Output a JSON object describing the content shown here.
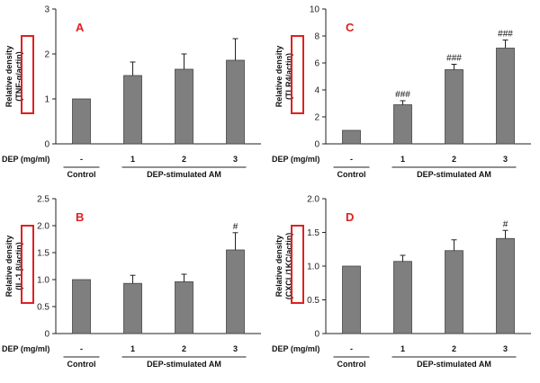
{
  "chart_data": [
    {
      "type": "bar",
      "panel_label": "A",
      "ylabel_line1": "Relative density",
      "ylabel_line2": "(TNF-α/actin)",
      "ylim": [
        0,
        3
      ],
      "yticks": [
        "0",
        "1",
        "2",
        "3"
      ],
      "yticks_values": [
        0,
        1,
        2,
        3
      ],
      "xlabel": "DEP (mg/ml)",
      "categories": [
        "-",
        "1",
        "2",
        "3"
      ],
      "values": [
        1.0,
        1.52,
        1.66,
        1.86
      ],
      "errors": [
        0.0,
        0.3,
        0.34,
        0.48
      ],
      "significance": [
        "",
        "",
        "",
        ""
      ],
      "group_labels": [
        "Control",
        "DEP-stimulated AM"
      ]
    },
    {
      "type": "bar",
      "panel_label": "C",
      "ylabel_line1": "Relative density",
      "ylabel_line2": "(TLR4/actin)",
      "ylim": [
        0,
        10
      ],
      "yticks": [
        "0",
        "2",
        "4",
        "6",
        "8",
        "10"
      ],
      "yticks_values": [
        0,
        2,
        4,
        6,
        8,
        10
      ],
      "xlabel": "DEP (mg/ml)",
      "categories": [
        "-",
        "1",
        "2",
        "3"
      ],
      "values": [
        1.0,
        2.9,
        5.5,
        7.1
      ],
      "errors": [
        0.0,
        0.3,
        0.4,
        0.6
      ],
      "significance": [
        "",
        "###",
        "###",
        "###"
      ],
      "group_labels": [
        "Control",
        "DEP-stimulated AM"
      ]
    },
    {
      "type": "bar",
      "panel_label": "B",
      "ylabel_line1": "Relative density",
      "ylabel_line2": "(IL-1 β/actin)",
      "ylim": [
        0,
        2.5
      ],
      "yticks": [
        "0",
        "0.5",
        "1.0",
        "1.5",
        "2.0",
        "2.5"
      ],
      "yticks_values": [
        0,
        0.5,
        1.0,
        1.5,
        2.0,
        2.5
      ],
      "xlabel": "DEP (mg/ml)",
      "categories": [
        "-",
        "1",
        "2",
        "3"
      ],
      "values": [
        1.0,
        0.93,
        0.96,
        1.55
      ],
      "errors": [
        0.0,
        0.15,
        0.14,
        0.32
      ],
      "significance": [
        "",
        "",
        "",
        "#"
      ],
      "group_labels": [
        "Control",
        "DEP-stimulated AM"
      ]
    },
    {
      "type": "bar",
      "panel_label": "D",
      "ylabel_line1": "Relative density",
      "ylabel_line2": "(CXCL/1KC/actin)",
      "ylim": [
        0,
        2.0
      ],
      "yticks": [
        "0",
        "0.5",
        "1.0",
        "1.5",
        "2.0"
      ],
      "yticks_values": [
        0,
        0.5,
        1.0,
        1.5,
        2.0
      ],
      "xlabel": "DEP (mg/ml)",
      "categories": [
        "-",
        "1",
        "2",
        "3"
      ],
      "values": [
        1.0,
        1.07,
        1.23,
        1.41
      ],
      "errors": [
        0.0,
        0.09,
        0.16,
        0.12
      ],
      "significance": [
        "",
        "",
        "",
        "#"
      ],
      "group_labels": [
        "Control",
        "DEP-stimulated AM"
      ]
    }
  ],
  "colors": {
    "bar_fill": "#7f7f7f",
    "bar_stroke": "#444444",
    "axis": "#222222",
    "highlight_box": "#e02020",
    "panel_label": "#e02020"
  }
}
